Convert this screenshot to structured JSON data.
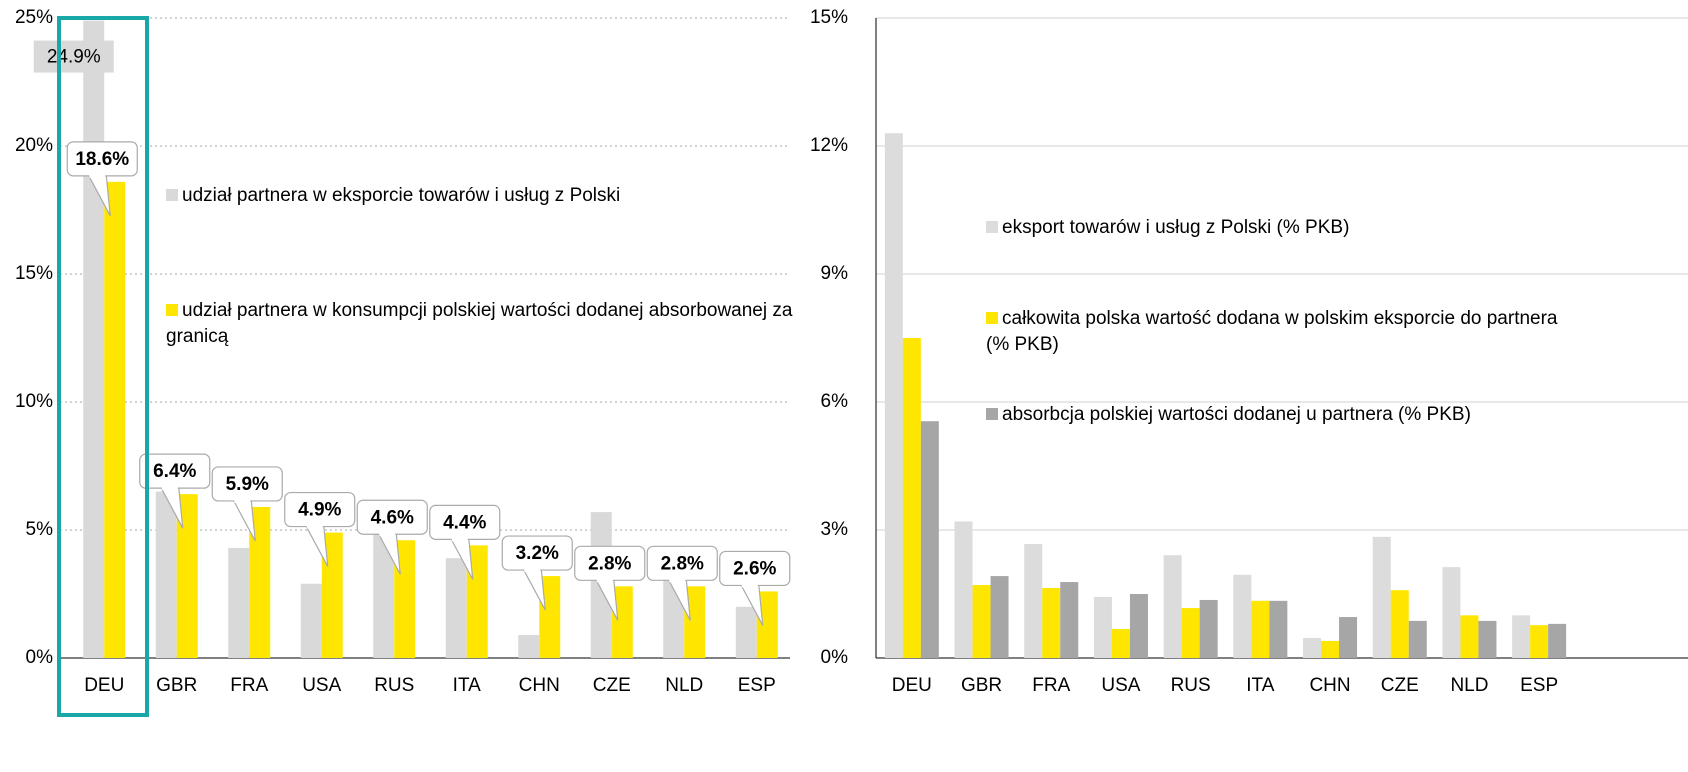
{
  "chart_data": [
    {
      "type": "bar",
      "categories": [
        "DEU",
        "GBR",
        "FRA",
        "USA",
        "RUS",
        "ITA",
        "CHN",
        "CZE",
        "NLD",
        "ESP"
      ],
      "series": [
        {
          "name": "udział partnera w eksporcie towarów i usług z Polski",
          "color": "#d9d9d9",
          "values": [
            24.9,
            6.5,
            4.3,
            2.9,
            4.9,
            3.9,
            0.9,
            5.7,
            3.9,
            2.0
          ],
          "value_labels": [
            "24.9%",
            null,
            null,
            null,
            null,
            null,
            null,
            null,
            null,
            null
          ]
        },
        {
          "name": "udział partnera w konsumpcji polskiej wartości dodanej absorbowanej za granicą",
          "color": "#ffe600",
          "values": [
            18.6,
            6.4,
            5.9,
            4.9,
            4.6,
            4.4,
            3.2,
            2.8,
            2.8,
            2.6
          ],
          "value_labels": [
            "18.6%",
            "6.4%",
            "5.9%",
            "4.9%",
            "4.6%",
            "4.4%",
            "3.2%",
            "2.8%",
            "2.8%",
            "2.6%"
          ]
        }
      ],
      "ylim": [
        0,
        25
      ],
      "yticks": [
        {
          "value": 0,
          "label": "0%"
        },
        {
          "value": 5,
          "label": "5%"
        },
        {
          "value": 10,
          "label": "10%"
        },
        {
          "value": 15,
          "label": "15%"
        },
        {
          "value": 20,
          "label": "20%"
        },
        {
          "value": 25,
          "label": "25%"
        }
      ],
      "grid": "dotted"
    },
    {
      "type": "bar",
      "categories": [
        "DEU",
        "GBR",
        "FRA",
        "USA",
        "RUS",
        "ITA",
        "CHN",
        "CZE",
        "NLD",
        "ESP"
      ],
      "series": [
        {
          "name": "eksport towarów i usług z Polski (% PKB)",
          "color": "#dcdcdc",
          "values": [
            12.3,
            3.2,
            2.67,
            1.43,
            2.41,
            1.95,
            0.47,
            2.84,
            2.13,
            1.0
          ]
        },
        {
          "name": "całkowita polska wartość dodana w polskim eksporcie do partnera (% PKB)",
          "color": "#ffe600",
          "values": [
            7.5,
            1.71,
            1.64,
            0.68,
            1.17,
            1.34,
            0.4,
            1.59,
            1.0,
            0.77
          ]
        },
        {
          "name": "absorbcja polskiej wartości dodanej u partnera (% PKB)",
          "color": "#a6a6a6",
          "values": [
            5.55,
            1.92,
            1.78,
            1.5,
            1.36,
            1.34,
            0.96,
            0.87,
            0.87,
            0.8
          ]
        }
      ],
      "ylim": [
        0,
        15
      ],
      "yticks": [
        {
          "value": 0,
          "label": "0%"
        },
        {
          "value": 3,
          "label": "3%"
        },
        {
          "value": 6,
          "label": "6%"
        },
        {
          "value": 9,
          "label": "9%"
        },
        {
          "value": 12,
          "label": "12%"
        },
        {
          "value": 15,
          "label": "15%"
        }
      ],
      "grid": "solid"
    }
  ]
}
